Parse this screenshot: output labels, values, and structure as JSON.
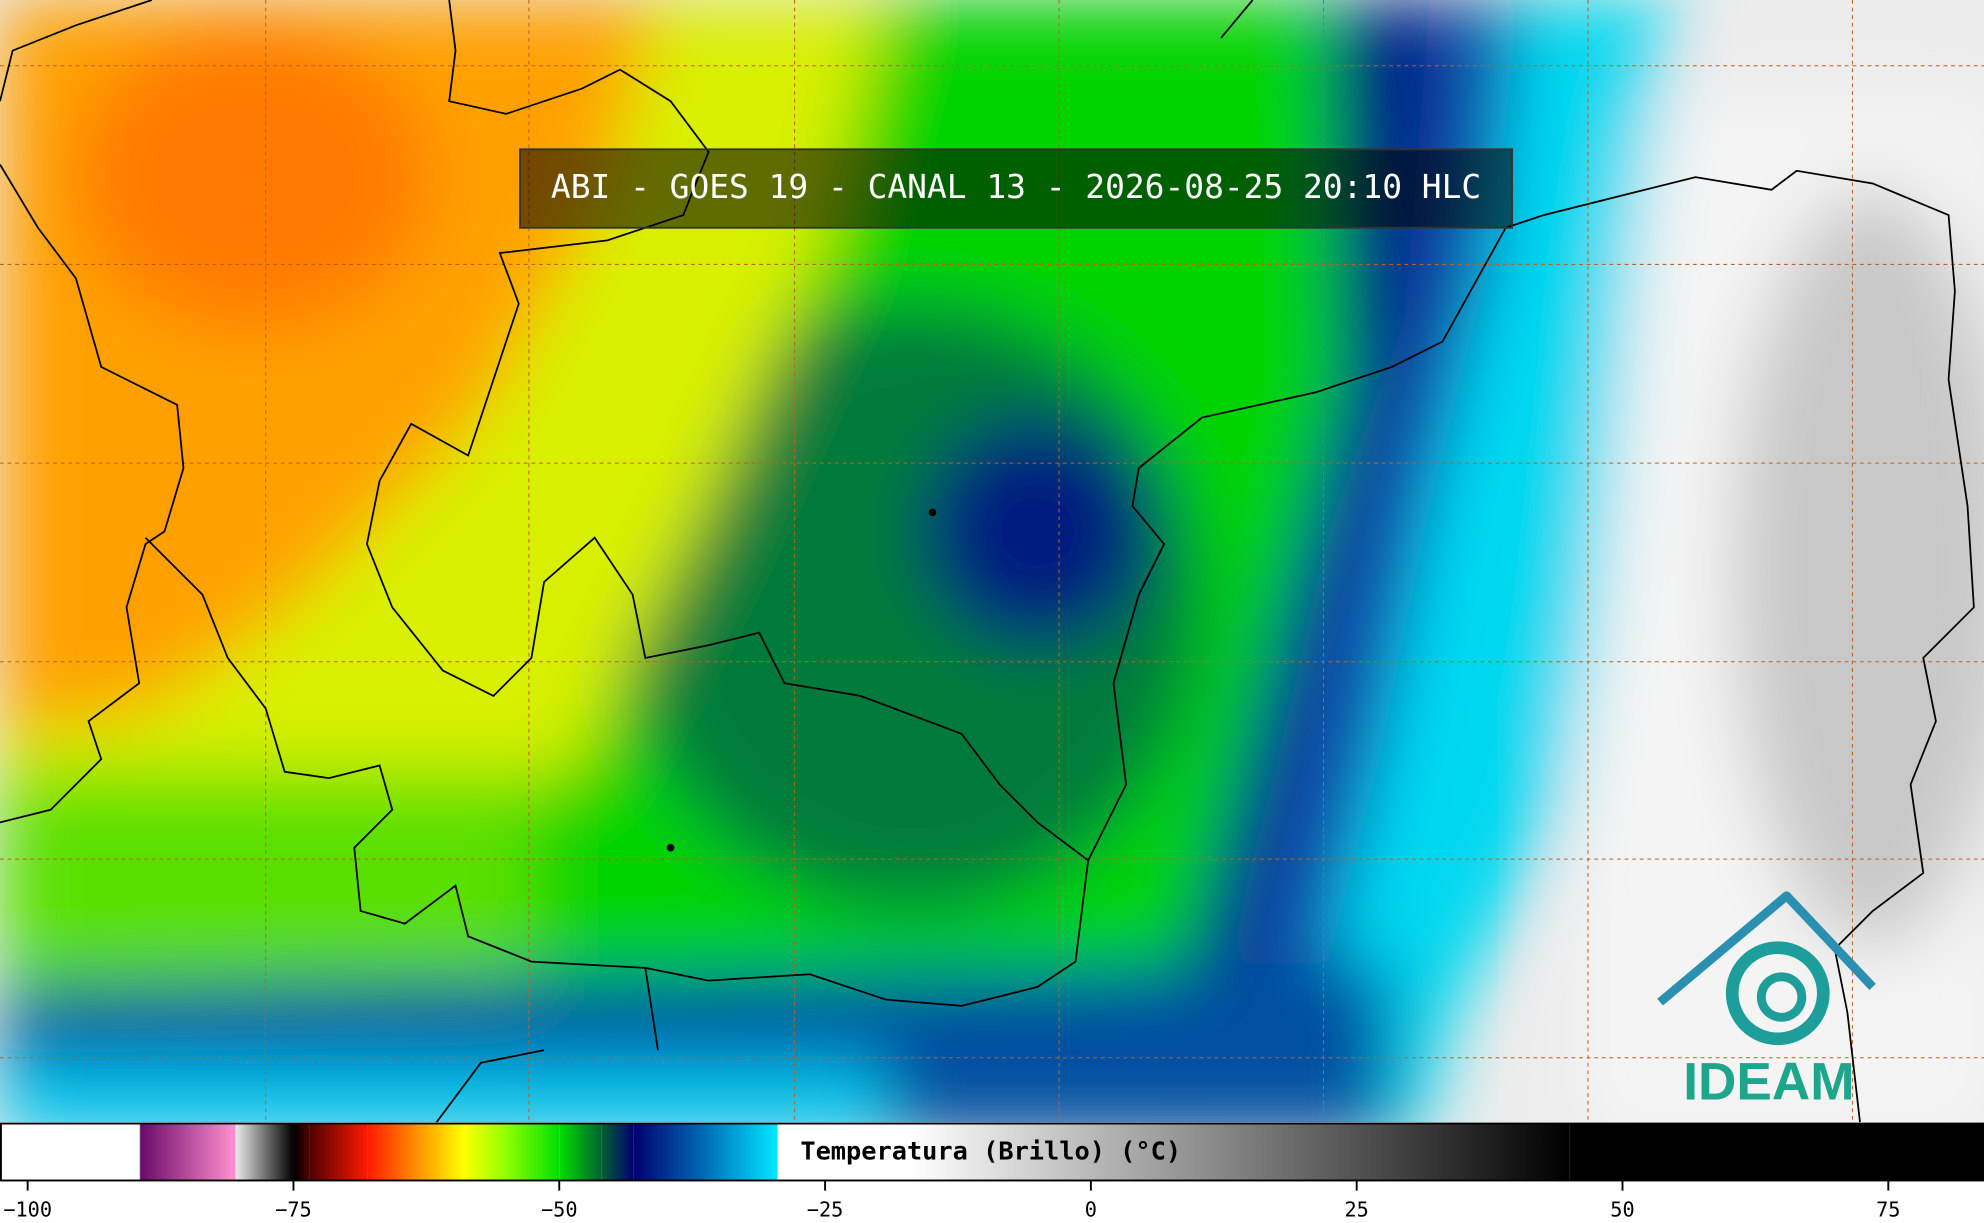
{
  "header": {
    "title": "ABI - GOES 19 - CANAL 13 - 2026-08-25 20:10 HLC"
  },
  "colorbar": {
    "label": "Temperatura (Brillo) (°C)",
    "range": [
      -102.6,
      84
    ],
    "ticks": [
      {
        "value": -100,
        "label": "−100"
      },
      {
        "value": -75,
        "label": "−75"
      },
      {
        "value": -50,
        "label": "−50"
      },
      {
        "value": -25,
        "label": "−25"
      },
      0,
      25,
      50,
      75
    ],
    "colormap": [
      {
        "value": -102.6,
        "color": "#ffffff"
      },
      {
        "value": -89.5,
        "color": "#ffffff"
      },
      {
        "value": -89.4,
        "color": "#6a0a6a"
      },
      {
        "value": -80.5,
        "color": "#ff90d0"
      },
      {
        "value": -80.4,
        "color": "#e8e8e8"
      },
      {
        "value": -75,
        "color": "#000000"
      },
      {
        "value": -73.5,
        "color": "#500000"
      },
      {
        "value": -68,
        "color": "#ff1a00"
      },
      {
        "value": -63,
        "color": "#ff9a00"
      },
      {
        "value": -59,
        "color": "#ffff00"
      },
      {
        "value": -55,
        "color": "#90ff00"
      },
      {
        "value": -50,
        "color": "#00e000"
      },
      {
        "value": -46,
        "color": "#006030"
      },
      {
        "value": -43,
        "color": "#000070"
      },
      {
        "value": -37,
        "color": "#0060b0"
      },
      {
        "value": -29.5,
        "color": "#00e8ff"
      },
      {
        "value": -29.4,
        "color": "#ffffff"
      },
      {
        "value": -17,
        "color": "#ffffff"
      },
      {
        "value": 45,
        "color": "#000000"
      },
      {
        "value": 84,
        "color": "#000000"
      }
    ]
  },
  "logo": {
    "text": "IDEAM"
  }
}
